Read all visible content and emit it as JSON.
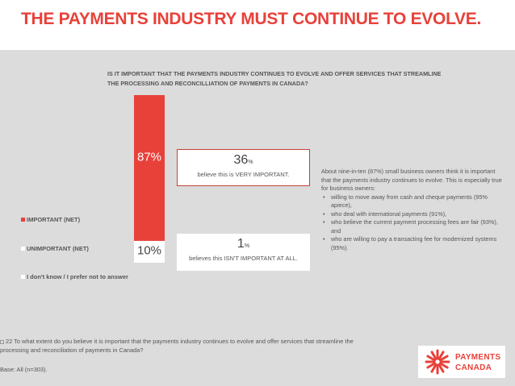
{
  "title": "THE PAYMENTS INDUSTRY MUST CONTINUE TO EVOLVE.",
  "question": "IS IT IMPORTANT THAT THE PAYMENTS INDUSTRY CONTINUES TO EVOLVE AND OFFER SERVICES THAT STREAMLINE THE PROCESSING AND RECONCILLIATION OF PAYMENTS IN CANADA?",
  "colors": {
    "accent": "#e8413a",
    "important": "#e8413a",
    "unimportant": "#ffffff",
    "dont_know": "#ffffff",
    "panel": "#dcdcdc"
  },
  "chart_data": {
    "type": "bar",
    "stacked": true,
    "orientation": "vertical",
    "ylim": [
      0,
      100
    ],
    "series": [
      {
        "name": "IMPORTANT (NET)",
        "value": 87,
        "label": "87%",
        "color": "#e8413a"
      },
      {
        "name": "UNIMPORTANT (NET)",
        "value": 10,
        "label": "10%",
        "color": "#ffffff"
      },
      {
        "name": "I don't know / I prefer not to answer",
        "value": 3,
        "label": "",
        "color": "#ffffff"
      }
    ],
    "legend": {
      "position": "left"
    }
  },
  "callouts": {
    "very_important": {
      "value": "36",
      "unit": "%",
      "text": "believe this is VERY IMPORTANT."
    },
    "not_important": {
      "value": "1",
      "unit": "%",
      "text": "believes this ISN'T IMPORTANT AT ALL."
    }
  },
  "insight": {
    "intro": "About nine-in-ten (87%) small business owners think it is important that the payments industry continues to evolve. This is especially true for business owners:",
    "bullets": [
      "willing to move away from cash and cheque payments (95% apiece),",
      "who deal with international payments (91%),",
      "who believe the current payment processing fees are fair (93%), and",
      "who are willing to pay a transacting fee for modernized systems (95%)."
    ]
  },
  "footnote": {
    "qnum": "22",
    "text": "To what extent do you believe it is important that the payments industry continues to evolve and offer services that streamline the processing and reconciliation of payments in Canada?",
    "base": "Base: All (n=303)."
  },
  "logo": {
    "line1": "PAYMENTS",
    "line2": "CANADA"
  }
}
